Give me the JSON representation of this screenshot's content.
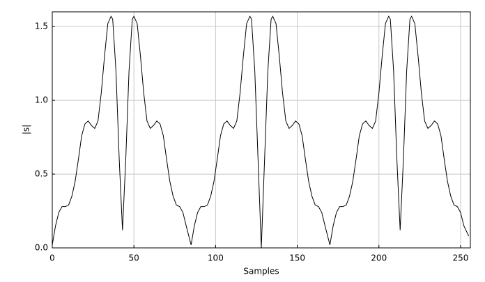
{
  "chart_data": {
    "type": "line",
    "xlabel": "Samples",
    "ylabel": "|s|",
    "xlim": [
      0,
      256
    ],
    "ylim": [
      0,
      1.6
    ],
    "xticks": [
      0,
      50,
      100,
      150,
      200,
      250
    ],
    "yticks": [
      {
        "value": 0,
        "label": "0.0"
      },
      {
        "value": 0.5,
        "label": "0.5"
      },
      {
        "value": 1,
        "label": "1.0"
      },
      {
        "value": 1.5,
        "label": "1.5"
      }
    ],
    "grid": true,
    "x": [
      0,
      2,
      4,
      6,
      8,
      10,
      12,
      14,
      16,
      18,
      20,
      22,
      24,
      26,
      28,
      30,
      32,
      34,
      36,
      37,
      39,
      41,
      43,
      45,
      47,
      49,
      50,
      52,
      54,
      56,
      58,
      60,
      62,
      64,
      66,
      68,
      70,
      72,
      74,
      76,
      78,
      80,
      82,
      85,
      87,
      89,
      91,
      93,
      95,
      97,
      99,
      101,
      103,
      105,
      107,
      109,
      111,
      113,
      115,
      117,
      119,
      121,
      122,
      124,
      126,
      128,
      130,
      132,
      134,
      135,
      137,
      139,
      141,
      143,
      145,
      147,
      149,
      151,
      153,
      155,
      157,
      159,
      161,
      163,
      165,
      167,
      170,
      172,
      174,
      176,
      178,
      180,
      182,
      184,
      186,
      188,
      190,
      192,
      194,
      196,
      198,
      200,
      202,
      204,
      206,
      207,
      209,
      211,
      213,
      215,
      217,
      219,
      220,
      222,
      224,
      226,
      228,
      230,
      232,
      234,
      236,
      238,
      240,
      242,
      244,
      246,
      248,
      250,
      252,
      255
    ],
    "series": [
      {
        "color": "#000000",
        "values": [
          0.02,
          0.15,
          0.24,
          0.28,
          0.28,
          0.29,
          0.35,
          0.45,
          0.6,
          0.76,
          0.84,
          0.86,
          0.83,
          0.81,
          0.86,
          1.05,
          1.3,
          1.52,
          1.57,
          1.55,
          1.2,
          0.6,
          0.12,
          0.6,
          1.2,
          1.55,
          1.57,
          1.52,
          1.3,
          1.05,
          0.86,
          0.81,
          0.83,
          0.86,
          0.84,
          0.76,
          0.6,
          0.45,
          0.35,
          0.29,
          0.28,
          0.24,
          0.15,
          0.02,
          0.15,
          0.24,
          0.28,
          0.28,
          0.29,
          0.35,
          0.45,
          0.6,
          0.76,
          0.84,
          0.86,
          0.83,
          0.81,
          0.86,
          1.05,
          1.3,
          1.52,
          1.57,
          1.55,
          1.2,
          0.6,
          0.0,
          0.6,
          1.2,
          1.55,
          1.57,
          1.52,
          1.3,
          1.05,
          0.86,
          0.81,
          0.83,
          0.86,
          0.84,
          0.76,
          0.6,
          0.45,
          0.35,
          0.29,
          0.28,
          0.24,
          0.15,
          0.02,
          0.15,
          0.24,
          0.28,
          0.28,
          0.29,
          0.35,
          0.45,
          0.6,
          0.76,
          0.84,
          0.86,
          0.83,
          0.81,
          0.86,
          1.05,
          1.3,
          1.52,
          1.57,
          1.55,
          1.2,
          0.6,
          0.12,
          0.6,
          1.2,
          1.55,
          1.57,
          1.52,
          1.3,
          1.05,
          0.86,
          0.81,
          0.83,
          0.86,
          0.84,
          0.76,
          0.6,
          0.45,
          0.35,
          0.29,
          0.28,
          0.24,
          0.15,
          0.08
        ]
      }
    ]
  }
}
